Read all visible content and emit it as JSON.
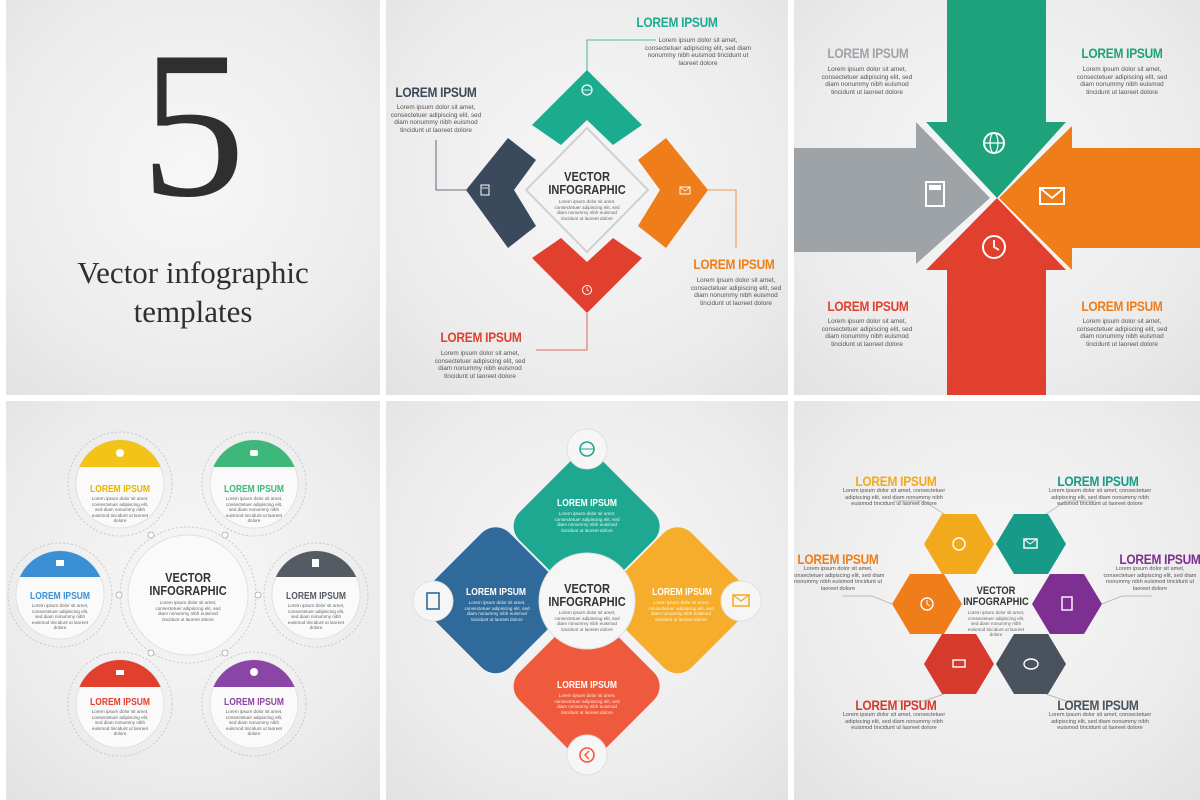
{
  "cover": {
    "number": "5",
    "line1": "Vector infographic",
    "line2": "templates"
  },
  "common": {
    "heading": "LOREM IPSUM",
    "body": "Lorem ipsum dolor sit amet, consectetuer adipiscing elit, sed diam nonummy nibh euismod tincidunt ut laoreet dolore",
    "center_line1": "VECTOR",
    "center_line2": "INFOGRAPHIC",
    "center_body": "Lorem ipsum dolor sit amet, consectetuer adipiscing elit, sed diam nonummy nibh euismod tincidunt ut laoreet dolore",
    "short_body": "Lorem ipsum dolor sit amet, consectetuer adipiscing elit, sed diam nonummy nibh euismod tincidunt ut laoreet dolore",
    "dots": "●●●"
  },
  "colors": {
    "teal": "#1bab8f",
    "green": "#3db87a",
    "orange": "#ef7d1a",
    "red": "#e2402e",
    "navy": "#3a4a5c",
    "gray": "#9ea3a8",
    "yellow": "#f4c317",
    "blue": "#3b8fd4",
    "purple": "#8b45a6",
    "dark_gray": "#555b63"
  },
  "icons": [
    "globe-cursor-icon",
    "envelope-icon",
    "calculator-icon",
    "clock-icon",
    "cart-icon",
    "chat-bubble-icon",
    "chevron-left-icon"
  ]
}
